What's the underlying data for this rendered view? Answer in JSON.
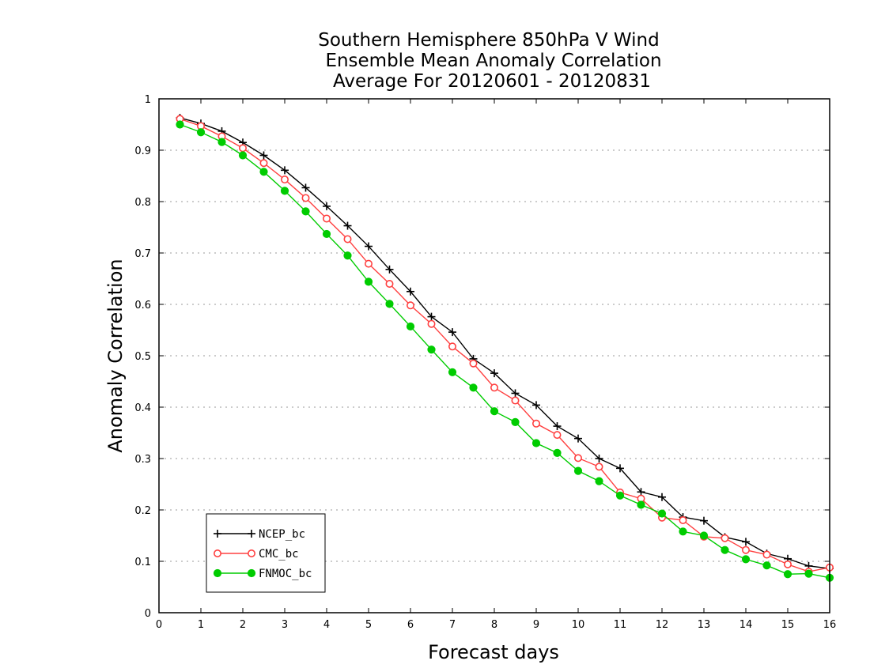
{
  "chart_data": {
    "type": "line",
    "title": [
      "Southern Hemisphere 850hPa V Wind",
      "Ensemble Mean Anomaly Correlation",
      "Average For 20120601 - 20120831"
    ],
    "xlabel": "Forecast days",
    "ylabel": "Anomaly Correlation",
    "xlim": [
      0,
      16
    ],
    "ylim": [
      0,
      1
    ],
    "x_ticks": [
      "0",
      "1",
      "2",
      "3",
      "4",
      "5",
      "6",
      "7",
      "8",
      "9",
      "10",
      "11",
      "12",
      "13",
      "14",
      "15",
      "16"
    ],
    "y_ticks": [
      "0",
      "0.1",
      "0.2",
      "0.3",
      "0.4",
      "0.5",
      "0.6",
      "0.7",
      "0.8",
      "0.9",
      "1"
    ],
    "grid": "horizontal dotted",
    "legend_position": "bottom-left",
    "x": [
      0.5,
      1,
      1.5,
      2,
      2.5,
      3,
      3.5,
      4,
      4.5,
      5,
      5.5,
      6,
      6.5,
      7,
      7.5,
      8,
      8.5,
      9,
      9.5,
      10,
      10.5,
      11,
      11.5,
      12,
      12.5,
      13,
      13.5,
      14,
      14.5,
      15,
      15.5,
      16
    ],
    "series": [
      {
        "name": "NCEP_bc",
        "color": "#000000",
        "marker": "plus",
        "values": [
          0.963,
          0.952,
          0.937,
          0.915,
          0.89,
          0.861,
          0.827,
          0.791,
          0.753,
          0.713,
          0.668,
          0.625,
          0.576,
          0.546,
          0.494,
          0.466,
          0.427,
          0.404,
          0.363,
          0.339,
          0.3,
          0.281,
          0.235,
          0.225,
          0.186,
          0.179,
          0.147,
          0.138,
          0.115,
          0.105,
          0.091,
          0.086
        ]
      },
      {
        "name": "CMC_bc",
        "color": "#ff4040",
        "marker": "open-circle",
        "values": [
          0.961,
          0.947,
          0.927,
          0.904,
          0.875,
          0.843,
          0.807,
          0.767,
          0.727,
          0.679,
          0.64,
          0.598,
          0.562,
          0.518,
          0.485,
          0.438,
          0.413,
          0.368,
          0.346,
          0.301,
          0.284,
          0.234,
          0.222,
          0.185,
          0.18,
          0.148,
          0.145,
          0.122,
          0.113,
          0.094,
          0.08,
          0.088
        ]
      },
      {
        "name": "FNMOC_bc",
        "color": "#00cc00",
        "marker": "filled-circle",
        "values": [
          0.95,
          0.935,
          0.916,
          0.89,
          0.858,
          0.821,
          0.781,
          0.737,
          0.695,
          0.644,
          0.601,
          0.557,
          0.512,
          0.468,
          0.438,
          0.392,
          0.371,
          0.33,
          0.311,
          0.276,
          0.256,
          0.228,
          0.21,
          0.193,
          0.158,
          0.15,
          0.122,
          0.104,
          0.092,
          0.075,
          0.076,
          0.068
        ]
      }
    ]
  }
}
